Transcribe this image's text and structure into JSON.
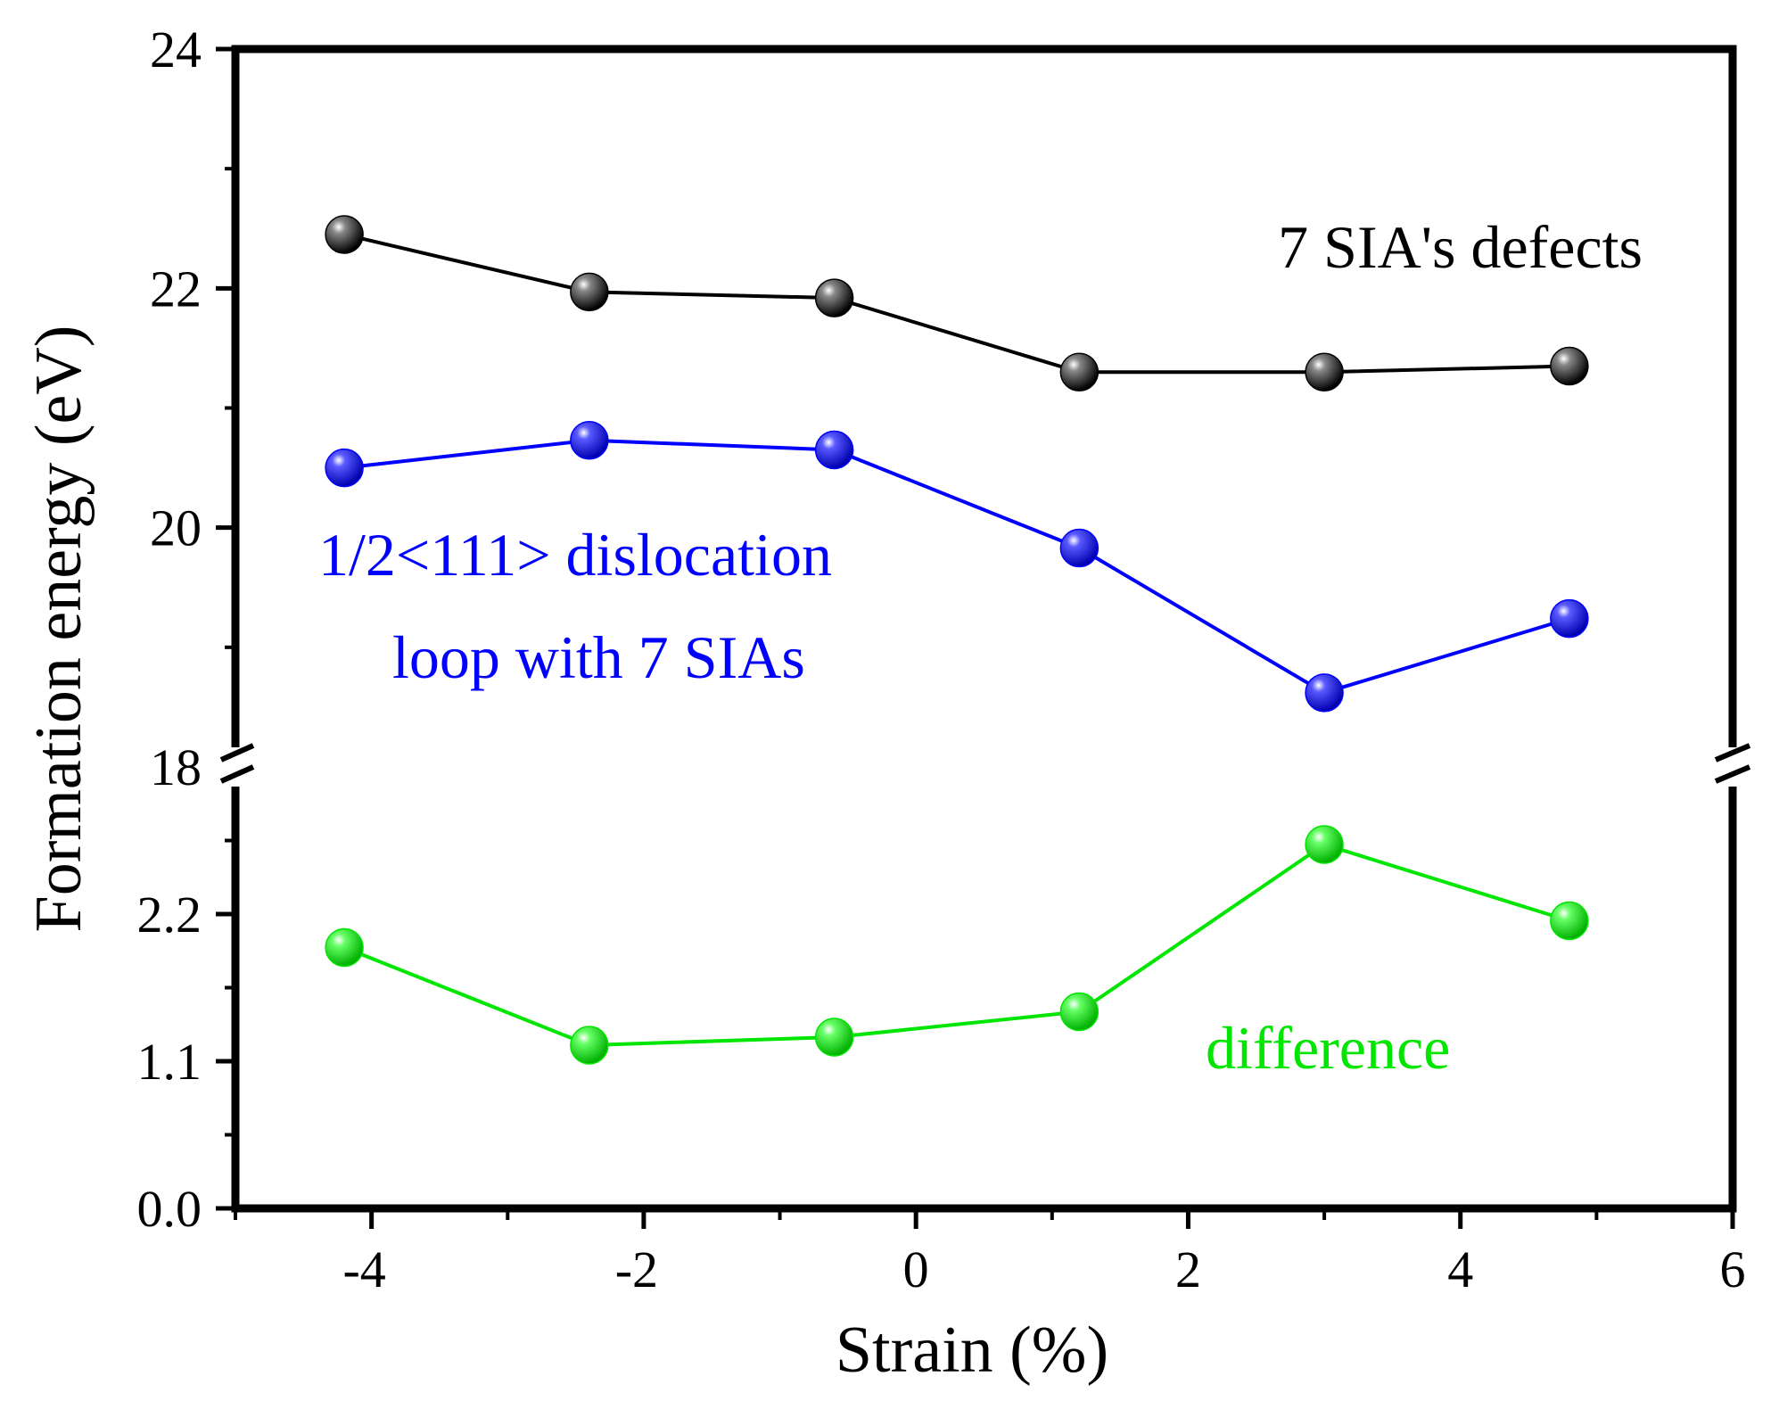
{
  "chart_data": {
    "type": "line",
    "title": "",
    "xlabel": "Strain (%)",
    "ylabel": "Formation energy (eV)",
    "xlim": [
      -5,
      6
    ],
    "x_ticks": [
      "-4",
      "-2",
      "0",
      "2",
      "4",
      "6"
    ],
    "x_tick_values": [
      -4,
      -2,
      0,
      2,
      4,
      6
    ],
    "y_axis_break": true,
    "upper_ylim": [
      18,
      24
    ],
    "upper_y_ticks": [
      "18",
      "20",
      "22",
      "24"
    ],
    "upper_y_tick_values": [
      18,
      20,
      22,
      24
    ],
    "lower_ylim": [
      0,
      3.3
    ],
    "lower_y_ticks": [
      "0.0",
      "1.1",
      "2.2"
    ],
    "lower_y_tick_values": [
      0,
      1.1,
      2.2
    ],
    "x": [
      -4.2,
      -2.4,
      -0.6,
      1.2,
      3.0,
      4.8
    ],
    "series": [
      {
        "name": "7 SIA's defects",
        "panel": "upper",
        "color": "#000000",
        "values": [
          22.45,
          21.97,
          21.92,
          21.3,
          21.3,
          21.35
        ]
      },
      {
        "name": "1/2<111> dislocation loop with 7 SIAs",
        "panel": "upper",
        "color": "#0000ff",
        "values": [
          20.5,
          20.73,
          20.65,
          19.83,
          18.62,
          19.24
        ]
      },
      {
        "name": "difference",
        "panel": "lower",
        "color": "#00e600",
        "values": [
          1.95,
          1.22,
          1.28,
          1.47,
          2.72,
          2.15
        ]
      }
    ],
    "annotations": {
      "black": "7 SIA's defects",
      "blue_line1": "1/2<111> dislocation",
      "blue_line2": "loop with 7 SIAs",
      "green": "difference"
    }
  }
}
